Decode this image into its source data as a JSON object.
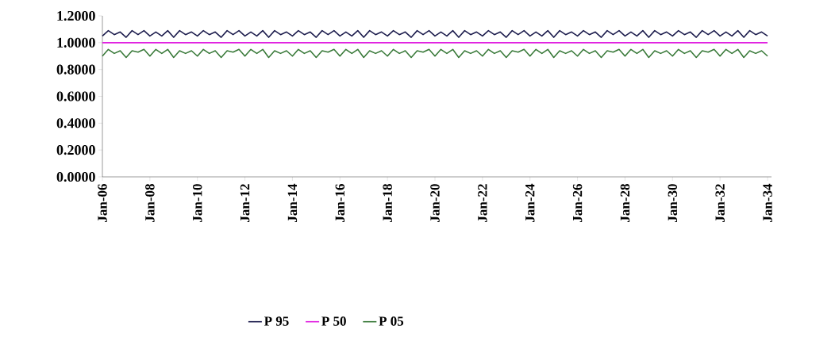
{
  "chart_data": {
    "type": "line",
    "x": [
      "2006-01",
      "2006-04",
      "2006-07",
      "2006-10",
      "2007-01",
      "2007-04",
      "2007-07",
      "2007-10",
      "2008-01",
      "2008-04",
      "2008-07",
      "2008-10",
      "2009-01",
      "2009-04",
      "2009-07",
      "2009-10",
      "2010-01",
      "2010-04",
      "2010-07",
      "2010-10",
      "2011-01",
      "2011-04",
      "2011-07",
      "2011-10",
      "2012-01",
      "2012-04",
      "2012-07",
      "2012-10",
      "2013-01",
      "2013-04",
      "2013-07",
      "2013-10",
      "2014-01",
      "2014-04",
      "2014-07",
      "2014-10",
      "2015-01",
      "2015-04",
      "2015-07",
      "2015-10",
      "2016-01",
      "2016-04",
      "2016-07",
      "2016-10",
      "2017-01",
      "2017-04",
      "2017-07",
      "2017-10",
      "2018-01",
      "2018-04",
      "2018-07",
      "2018-10",
      "2019-01",
      "2019-04",
      "2019-07",
      "2019-10",
      "2020-01",
      "2020-04",
      "2020-07",
      "2020-10",
      "2021-01",
      "2021-04",
      "2021-07",
      "2021-10",
      "2022-01",
      "2022-04",
      "2022-07",
      "2022-10",
      "2023-01",
      "2023-04",
      "2023-07",
      "2023-10",
      "2024-01",
      "2024-04",
      "2024-07",
      "2024-10",
      "2025-01",
      "2025-04",
      "2025-07",
      "2025-10",
      "2026-01",
      "2026-04",
      "2026-07",
      "2026-10",
      "2027-01",
      "2027-04",
      "2027-07",
      "2027-10",
      "2028-01",
      "2028-04",
      "2028-07",
      "2028-10",
      "2029-01",
      "2029-04",
      "2029-07",
      "2029-10",
      "2030-01",
      "2030-04",
      "2030-07",
      "2030-10",
      "2031-01",
      "2031-04",
      "2031-07",
      "2031-10",
      "2032-01",
      "2032-04",
      "2032-07",
      "2032-10",
      "2033-01",
      "2033-04",
      "2033-07",
      "2033-10",
      "2034-01"
    ],
    "series": [
      {
        "name": "P 95",
        "color": "#1f1f4f",
        "values": [
          1.05,
          1.09,
          1.06,
          1.08,
          1.04,
          1.09,
          1.06,
          1.09,
          1.05,
          1.08,
          1.05,
          1.09,
          1.04,
          1.09,
          1.06,
          1.08,
          1.05,
          1.09,
          1.06,
          1.08,
          1.04,
          1.09,
          1.06,
          1.09,
          1.05,
          1.08,
          1.05,
          1.09,
          1.04,
          1.09,
          1.06,
          1.08,
          1.05,
          1.09,
          1.06,
          1.08,
          1.04,
          1.09,
          1.06,
          1.09,
          1.05,
          1.08,
          1.05,
          1.09,
          1.04,
          1.09,
          1.06,
          1.08,
          1.05,
          1.09,
          1.06,
          1.08,
          1.04,
          1.09,
          1.06,
          1.09,
          1.05,
          1.08,
          1.05,
          1.09,
          1.04,
          1.09,
          1.06,
          1.08,
          1.05,
          1.09,
          1.06,
          1.08,
          1.04,
          1.09,
          1.06,
          1.09,
          1.05,
          1.08,
          1.05,
          1.09,
          1.04,
          1.09,
          1.06,
          1.08,
          1.05,
          1.09,
          1.06,
          1.08,
          1.04,
          1.09,
          1.06,
          1.09,
          1.05,
          1.08,
          1.05,
          1.09,
          1.04,
          1.09,
          1.06,
          1.08,
          1.05,
          1.09,
          1.06,
          1.08,
          1.04,
          1.09,
          1.06,
          1.09,
          1.05,
          1.08,
          1.05,
          1.09,
          1.04,
          1.09,
          1.06,
          1.08,
          1.05
        ]
      },
      {
        "name": "P 50",
        "color": "#e020e0",
        "x": [
          "2006-01",
          "2034-01"
        ],
        "values": [
          1.0,
          1.0
        ]
      },
      {
        "name": "P 05",
        "color": "#3a7a3a",
        "values": [
          0.9,
          0.95,
          0.92,
          0.94,
          0.89,
          0.94,
          0.93,
          0.95,
          0.9,
          0.95,
          0.92,
          0.95,
          0.89,
          0.94,
          0.92,
          0.94,
          0.9,
          0.95,
          0.92,
          0.94,
          0.89,
          0.94,
          0.93,
          0.95,
          0.9,
          0.95,
          0.92,
          0.95,
          0.89,
          0.94,
          0.92,
          0.94,
          0.9,
          0.95,
          0.92,
          0.94,
          0.89,
          0.94,
          0.93,
          0.95,
          0.9,
          0.95,
          0.92,
          0.95,
          0.89,
          0.94,
          0.92,
          0.94,
          0.9,
          0.95,
          0.92,
          0.94,
          0.89,
          0.94,
          0.93,
          0.95,
          0.9,
          0.95,
          0.92,
          0.95,
          0.89,
          0.94,
          0.92,
          0.94,
          0.9,
          0.95,
          0.92,
          0.94,
          0.89,
          0.94,
          0.93,
          0.95,
          0.9,
          0.95,
          0.92,
          0.95,
          0.89,
          0.94,
          0.92,
          0.94,
          0.9,
          0.95,
          0.92,
          0.94,
          0.89,
          0.94,
          0.93,
          0.95,
          0.9,
          0.95,
          0.92,
          0.95,
          0.89,
          0.94,
          0.92,
          0.94,
          0.9,
          0.95,
          0.92,
          0.94,
          0.89,
          0.94,
          0.93,
          0.95,
          0.9,
          0.95,
          0.92,
          0.95,
          0.89,
          0.94,
          0.92,
          0.94,
          0.9
        ]
      }
    ],
    "xlim": [
      "2006-01",
      "2034-03"
    ],
    "xticks": [
      {
        "value": "2006-01",
        "label": "Jan-06"
      },
      {
        "value": "2008-01",
        "label": "Jan-08"
      },
      {
        "value": "2010-01",
        "label": "Jan-10"
      },
      {
        "value": "2012-01",
        "label": "Jan-12"
      },
      {
        "value": "2014-01",
        "label": "Jan-14"
      },
      {
        "value": "2016-01",
        "label": "Jan-16"
      },
      {
        "value": "2018-01",
        "label": "Jan-18"
      },
      {
        "value": "2020-01",
        "label": "Jan-20"
      },
      {
        "value": "2022-01",
        "label": "Jan-22"
      },
      {
        "value": "2024-01",
        "label": "Jan-24"
      },
      {
        "value": "2026-01",
        "label": "Jan-26"
      },
      {
        "value": "2028-01",
        "label": "Jan-28"
      },
      {
        "value": "2030-01",
        "label": "Jan-30"
      },
      {
        "value": "2032-01",
        "label": "Jan-32"
      },
      {
        "value": "2034-01",
        "label": "Jan-34"
      }
    ],
    "ylim": [
      0,
      1.2
    ],
    "yticks": [
      {
        "value": 0,
        "label": "0.0000"
      },
      {
        "value": 0.2,
        "label": "0.2000"
      },
      {
        "value": 0.4,
        "label": "0.4000"
      },
      {
        "value": 0.6,
        "label": "0.6000"
      },
      {
        "value": 0.8,
        "label": "0.8000"
      },
      {
        "value": 1.0,
        "label": "1.0000"
      },
      {
        "value": 1.2,
        "label": "1.2000"
      }
    ],
    "legend": "bottom",
    "grid": false,
    "marker": "none",
    "line_style": "solid"
  }
}
